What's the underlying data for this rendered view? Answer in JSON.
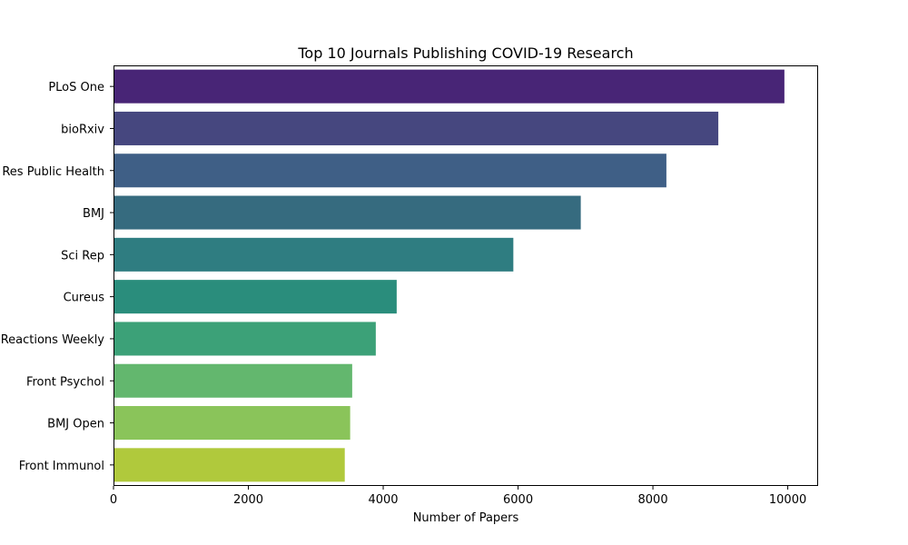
{
  "chart_data": {
    "type": "bar",
    "orientation": "horizontal",
    "title": "Top 10 Journals Publishing COVID-19 Research",
    "xlabel": "Number of Papers",
    "ylabel": "",
    "categories": [
      "PLoS One",
      "bioRxiv",
      "Int J Environ Res Public Health",
      "BMJ",
      "Sci Rep",
      "Cureus",
      "Reactions Weekly",
      "Front Psychol",
      "BMJ Open",
      "Front Immunol"
    ],
    "values": [
      9950,
      8970,
      8200,
      6930,
      5930,
      4200,
      3890,
      3540,
      3510,
      3430
    ],
    "xlim": [
      0,
      10450
    ],
    "xticks": [
      0,
      2000,
      4000,
      6000,
      8000,
      10000
    ],
    "colors": [
      "#482576",
      "#46477f",
      "#3f5f86",
      "#366b7f",
      "#2f7d81",
      "#2a8d7c",
      "#3ca178",
      "#63b76e",
      "#8ac45a",
      "#b0c93c"
    ],
    "grid": false,
    "legend": "none"
  }
}
